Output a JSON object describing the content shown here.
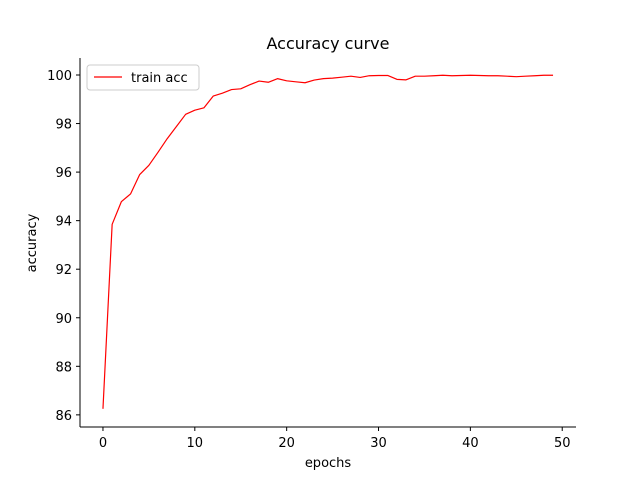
{
  "chart_data": {
    "type": "line",
    "title": "Accuracy curve",
    "xlabel": "epochs",
    "ylabel": "accuracy",
    "xlim": [
      -2.5,
      51.5
    ],
    "ylim": [
      85.5,
      100.7
    ],
    "xticks": [
      0,
      10,
      20,
      30,
      40,
      50
    ],
    "yticks": [
      86,
      88,
      90,
      92,
      94,
      96,
      98,
      100
    ],
    "legend_position": "top-left",
    "grid": false,
    "series": [
      {
        "name": "train acc",
        "color": "#ff0000",
        "x": [
          0,
          1,
          2,
          3,
          4,
          5,
          6,
          7,
          8,
          9,
          10,
          11,
          12,
          13,
          14,
          15,
          16,
          17,
          18,
          19,
          20,
          21,
          22,
          23,
          24,
          25,
          26,
          27,
          28,
          29,
          30,
          31,
          32,
          33,
          34,
          35,
          36,
          37,
          38,
          39,
          40,
          41,
          42,
          43,
          44,
          45,
          46,
          47,
          48,
          49
        ],
        "y": [
          86.25,
          93.85,
          94.78,
          95.1,
          95.9,
          96.28,
          96.82,
          97.38,
          97.88,
          98.38,
          98.55,
          98.65,
          99.13,
          99.25,
          99.4,
          99.43,
          99.6,
          99.75,
          99.7,
          99.85,
          99.76,
          99.72,
          99.68,
          99.79,
          99.85,
          99.87,
          99.91,
          99.95,
          99.9,
          99.97,
          99.98,
          99.98,
          99.82,
          99.8,
          99.95,
          99.95,
          99.97,
          99.99,
          99.97,
          99.98,
          99.99,
          99.98,
          99.97,
          99.97,
          99.95,
          99.93,
          99.95,
          99.97,
          99.99,
          99.99
        ]
      }
    ]
  }
}
